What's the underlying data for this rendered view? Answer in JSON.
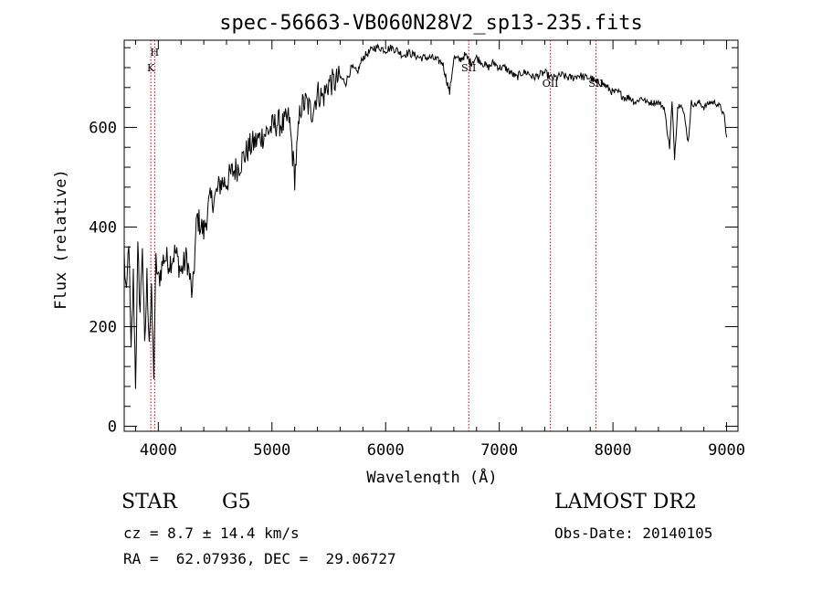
{
  "chart_data": {
    "type": "line",
    "title": "spec-56663-VB060N28V2_sp13-235.fits",
    "xlabel": "Wavelength (Å)",
    "ylabel": "Flux (relative)",
    "xlim": [
      3700,
      9100
    ],
    "ylim": [
      -10,
      775
    ],
    "xticks": [
      4000,
      5000,
      6000,
      7000,
      8000,
      9000
    ],
    "yticks": [
      0,
      200,
      400,
      600
    ],
    "grid": false,
    "series": [
      {
        "x": [
          3700,
          3720,
          3740,
          3760,
          3780,
          3800,
          3820,
          3840,
          3860,
          3880,
          3900,
          3920,
          3940,
          3960,
          3980,
          4000,
          4050,
          4100,
          4150,
          4200,
          4250,
          4300,
          4340,
          4400,
          4450,
          4500,
          4550,
          4600,
          4650,
          4700,
          4750,
          4800,
          4850,
          4900,
          4950,
          5000,
          5050,
          5100,
          5150,
          5200,
          5250,
          5300,
          5350,
          5400,
          5450,
          5500,
          5550,
          5600,
          5650,
          5700,
          5750,
          5800,
          5850,
          5900,
          5950,
          6000,
          6050,
          6100,
          6150,
          6200,
          6250,
          6300,
          6350,
          6400,
          6450,
          6500,
          6563,
          6600,
          6650,
          6700,
          6750,
          6800,
          6850,
          6900,
          6950,
          7000,
          7050,
          7100,
          7150,
          7200,
          7250,
          7300,
          7350,
          7400,
          7450,
          7500,
          7550,
          7600,
          7650,
          7700,
          7750,
          7800,
          7850,
          7900,
          7950,
          8000,
          8050,
          8100,
          8150,
          8200,
          8250,
          8300,
          8350,
          8400,
          8450,
          8498,
          8520,
          8542,
          8570,
          8600,
          8630,
          8662,
          8690,
          8720,
          8760,
          8800,
          8850,
          8900,
          8950,
          8980,
          9000
        ],
        "y": [
          340,
          250,
          380,
          140,
          300,
          90,
          350,
          230,
          370,
          150,
          300,
          180,
          260,
          110,
          330,
          290,
          340,
          330,
          350,
          310,
          340,
          260,
          420,
          390,
          450,
          460,
          490,
          490,
          510,
          520,
          540,
          560,
          570,
          580,
          590,
          600,
          610,
          605,
          620,
          500,
          640,
          650,
          630,
          670,
          660,
          690,
          690,
          700,
          690,
          720,
          710,
          740,
          750,
          760,
          760,
          755,
          760,
          755,
          745,
          750,
          745,
          740,
          740,
          740,
          735,
          730,
          670,
          740,
          735,
          745,
          730,
          740,
          730,
          720,
          730,
          720,
          720,
          710,
          700,
          710,
          710,
          700,
          705,
          710,
          700,
          700,
          705,
          700,
          700,
          705,
          700,
          700,
          690,
          690,
          680,
          670,
          670,
          660,
          660,
          650,
          660,
          650,
          650,
          650,
          640,
          560,
          650,
          540,
          640,
          650,
          620,
          570,
          650,
          645,
          650,
          640,
          650,
          650,
          640,
          620,
          580
        ]
      }
    ],
    "annotations": [
      {
        "label": "H",
        "x": 3968,
        "style": "dotted",
        "color": "#c00000"
      },
      {
        "label": "K",
        "x": 3934,
        "style": "dotted",
        "color": "#c00000"
      },
      {
        "label": "SII",
        "x": 6731,
        "style": "dotted",
        "color": "#c00000"
      },
      {
        "label": "OII",
        "x": 7450,
        "style": "dotted",
        "color": "#c00000"
      },
      {
        "label": "SII",
        "x": 7850,
        "style": "dotted",
        "color": "#c00000"
      }
    ]
  },
  "info": {
    "object_type": "STAR",
    "object_class": "G5",
    "survey": "LAMOST DR2",
    "cz": "cz = 8.7 ± 14.4 km/s",
    "obs_date": "Obs-Date: 20140105",
    "radec": "RA =  62.07936, DEC =  29.06727"
  }
}
